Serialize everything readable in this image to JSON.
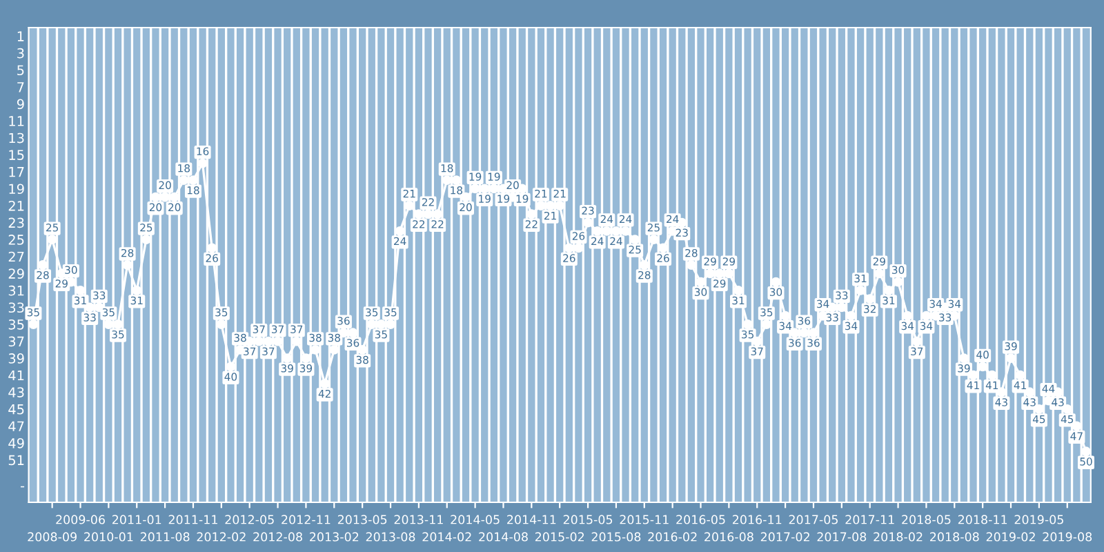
{
  "chart_data": {
    "type": "line",
    "categories": [
      null,
      null,
      "2008-09",
      null,
      null,
      "2009-06",
      null,
      null,
      "2010-01",
      null,
      null,
      "2011-01",
      null,
      null,
      "2011-08",
      null,
      null,
      "2011-11",
      null,
      null,
      "2012-02",
      null,
      null,
      "2012-05",
      null,
      null,
      "2012-08",
      null,
      null,
      "2012-11",
      null,
      null,
      "2013-02",
      null,
      null,
      "2013-05",
      null,
      null,
      "2013-08",
      null,
      null,
      "2013-11",
      null,
      null,
      "2014-02",
      null,
      null,
      "2014-05",
      null,
      null,
      "2014-08",
      null,
      null,
      "2014-11",
      null,
      null,
      "2015-02",
      null,
      null,
      "2015-05",
      null,
      null,
      "2015-08",
      null,
      null,
      "2015-11",
      null,
      null,
      "2016-02",
      null,
      null,
      "2016-05",
      null,
      null,
      "2016-08",
      null,
      null,
      "2016-11",
      null,
      null,
      "2017-02",
      null,
      null,
      "2017-05",
      null,
      null,
      "2017-08",
      null,
      null,
      "2017-11",
      null,
      null,
      "2018-02",
      null,
      null,
      "2018-05",
      null,
      null,
      "2018-08",
      null,
      null,
      "2018-11",
      null,
      null,
      "2019-02",
      null,
      null,
      "2019-05",
      null,
      null,
      "2019-08",
      null,
      null
    ],
    "series": [
      {
        "color": "#ffffff",
        "values": [
          35,
          28,
          25,
          29,
          30,
          31,
          33,
          33,
          35,
          35,
          28,
          31,
          25,
          20,
          20,
          20,
          18,
          18,
          16,
          26,
          35,
          40,
          38,
          37,
          37,
          37,
          37,
          39,
          37,
          39,
          38,
          42,
          38,
          36,
          36,
          38,
          35,
          35,
          35,
          24,
          21,
          22,
          22,
          22,
          18,
          18,
          20,
          19,
          19,
          19,
          19,
          20,
          19,
          22,
          21,
          21,
          21,
          26,
          26,
          23,
          24,
          24,
          24,
          24,
          25,
          28,
          25,
          26,
          24,
          23,
          28,
          30,
          29,
          29,
          29,
          31,
          35,
          37,
          35,
          30,
          34,
          36,
          36,
          36,
          34,
          33,
          33,
          34,
          31,
          32,
          29,
          31,
          30,
          34,
          37,
          34,
          34,
          33,
          34,
          39,
          41,
          40,
          41,
          43,
          39,
          41,
          43,
          45,
          44,
          43,
          45,
          47,
          50
        ]
      }
    ],
    "ylim": [
      56,
      0
    ],
    "yticks": [
      1,
      3,
      5,
      7,
      9,
      11,
      13,
      15,
      17,
      19,
      21,
      23,
      25,
      27,
      29,
      31,
      33,
      35,
      37,
      39,
      41,
      43,
      45,
      47,
      49,
      51,
      {
        "value": 54,
        "label": "-"
      }
    ],
    "grid": "x",
    "marker": "circle",
    "line_style": "solid",
    "data_labels": true,
    "legend": false
  }
}
